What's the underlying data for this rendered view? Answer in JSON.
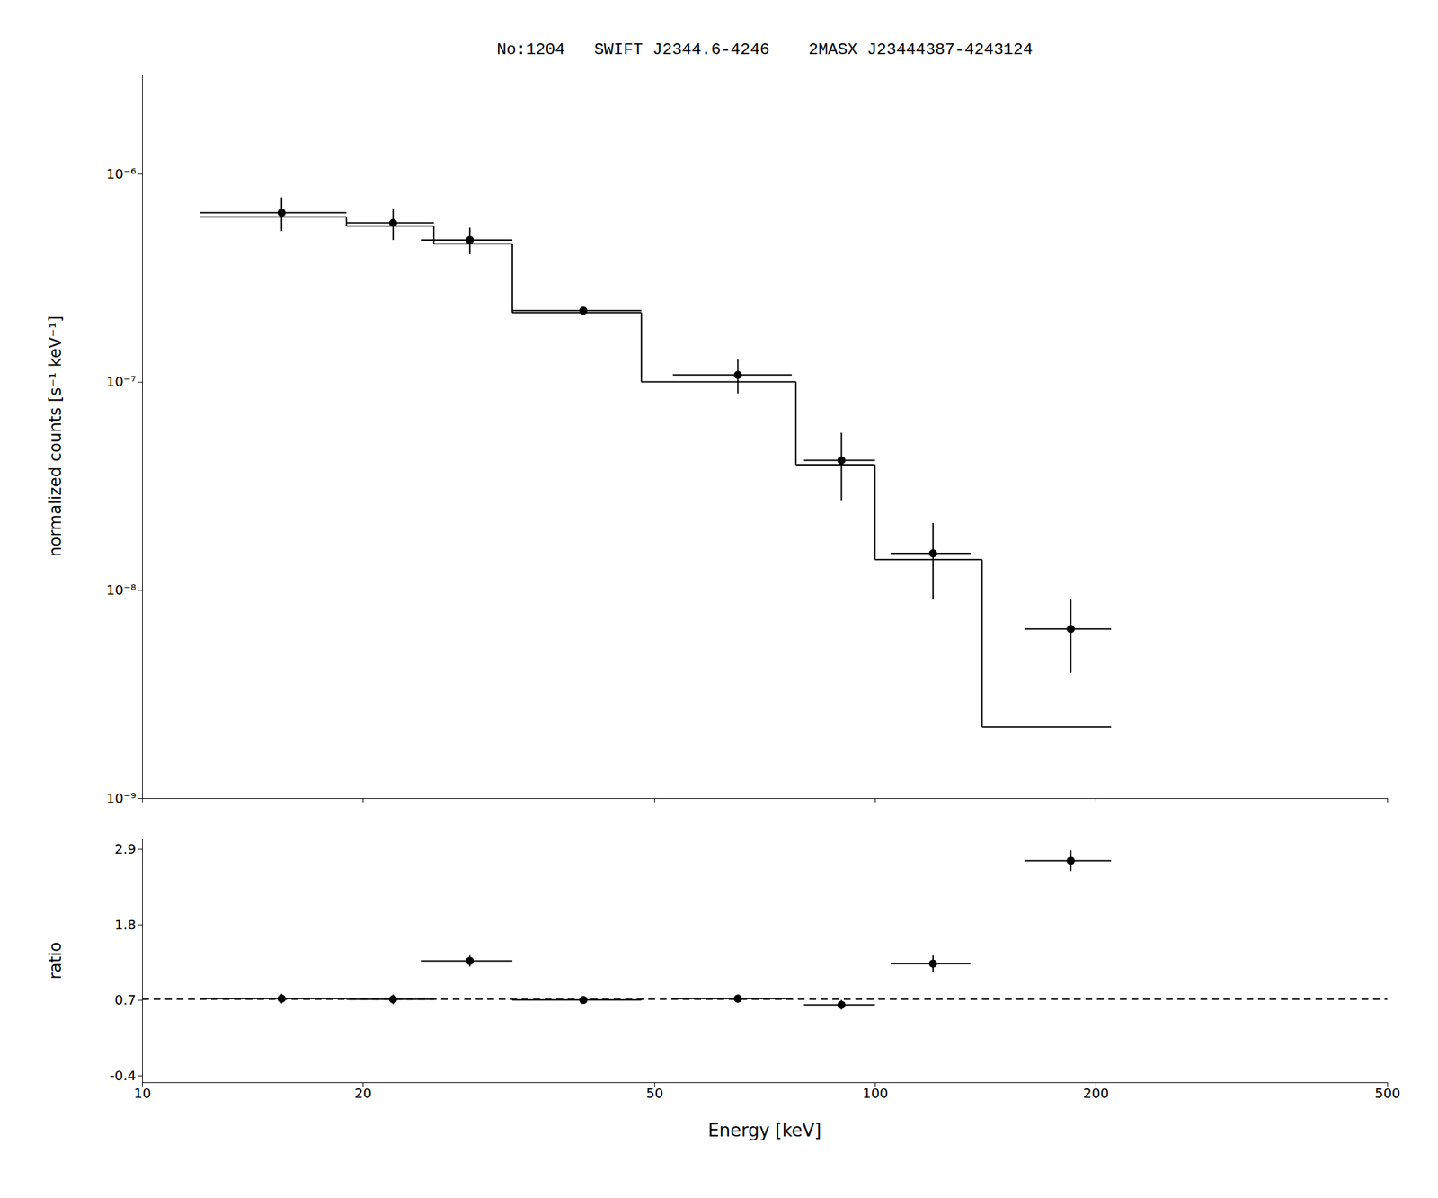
{
  "chart_data": [
    {
      "type": "scatter",
      "title": "No:1204   SWIFT J2344.6-4246    2MASX J23444387-4243124",
      "ylabel": "normalized counts [s⁻¹ keV⁻¹]",
      "log": true,
      "xlim": [
        10,
        500
      ],
      "xticks": [
        10,
        20,
        50,
        100,
        200,
        500
      ],
      "ylim": [
        1e-09,
        3e-06
      ],
      "yticks": [
        {
          "value": 1e-09,
          "label": "10⁻⁹"
        },
        {
          "value": 1e-08,
          "label": "10⁻⁸"
        },
        {
          "value": 1e-07,
          "label": "10⁻⁷"
        },
        {
          "value": 1e-06,
          "label": "10⁻⁶"
        }
      ],
      "tick_labels": "y",
      "series": [
        {
          "type": "step",
          "line_style": "solid",
          "color": "#000000",
          "bins": [
            12.0,
            19.0,
            25.0,
            32.0,
            48.0,
            78.0,
            100.0,
            140.0,
            210.0
          ],
          "values": [
            6.2e-07,
            5.6e-07,
            4.6e-07,
            2.15e-07,
            1e-07,
            4e-08,
            1.4e-08,
            2.2e-09
          ]
        },
        {
          "type": "scatter",
          "marker": "circle",
          "color": "#000000",
          "x": [
            15.5,
            22.0,
            28.0,
            40.0,
            65.0,
            90.0,
            120.0,
            185.0
          ],
          "x_err_minus": [
            3.5,
            3.0,
            4.0,
            8.0,
            12.0,
            10.0,
            15.0,
            25.0
          ],
          "x_err_plus": [
            3.5,
            3.0,
            4.0,
            8.0,
            12.0,
            10.0,
            15.0,
            25.0
          ],
          "values": [
            6.5e-07,
            5.8e-07,
            4.8e-07,
            2.2e-07,
            1.08e-07,
            4.2e-08,
            1.5e-08,
            6.5e-09
          ],
          "y_err_minus": [
            1.2e-07,
            1e-07,
            7e-08,
            4e-09,
            2e-08,
            1.5e-08,
            6e-09,
            2.5e-09
          ],
          "y_err_plus": [
            1.2e-07,
            1e-07,
            7e-08,
            4e-09,
            2e-08,
            1.5e-08,
            6e-09,
            2.5e-09
          ]
        }
      ]
    },
    {
      "type": "scatter",
      "xlabel": "Energy [keV]",
      "ylabel": "ratio",
      "log": "x",
      "xlim": [
        10,
        500
      ],
      "xticks": [
        10,
        20,
        50,
        100,
        200,
        500
      ],
      "ylim": [
        -0.5,
        3.05
      ],
      "yticks": [
        -0.4,
        0.7,
        1.8,
        2.9
      ],
      "series": [
        {
          "type": "scatter",
          "marker": "circle",
          "color": "#000000",
          "x": [
            15.5,
            22.0,
            28.0,
            40.0,
            65.0,
            90.0,
            120.0,
            185.0
          ],
          "x_err_minus": [
            3.5,
            3.0,
            4.0,
            8.0,
            12.0,
            10.0,
            15.0,
            25.0
          ],
          "x_err_plus": [
            3.5,
            3.0,
            4.0,
            8.0,
            12.0,
            10.0,
            15.0,
            25.0
          ],
          "values": [
            0.72,
            0.71,
            1.27,
            0.7,
            0.72,
            0.63,
            1.23,
            2.73
          ],
          "y_err_minus": [
            0.07,
            0.07,
            0.08,
            0.05,
            0.06,
            0.07,
            0.12,
            0.15
          ],
          "y_err_plus": [
            0.07,
            0.07,
            0.08,
            0.05,
            0.06,
            0.07,
            0.12,
            0.15
          ]
        },
        {
          "type": "hline",
          "line_style": "dashed",
          "color": "#000000",
          "values": [
            0.71
          ]
        }
      ]
    }
  ]
}
